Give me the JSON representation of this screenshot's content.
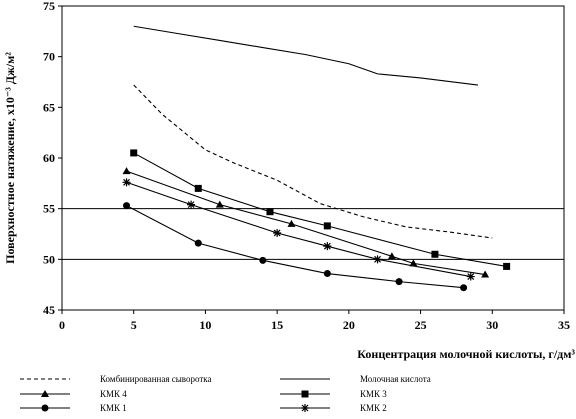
{
  "chart_data": {
    "type": "line",
    "xlabel": "Концентрация молочной кислоты, г/дм³",
    "ylabel": "Поверхностное натяжение, х10⁻³ Дж/м²",
    "xlim": [
      0,
      35
    ],
    "ylim": [
      45,
      75
    ],
    "x_ticks": [
      "0",
      "5",
      "10",
      "15",
      "20",
      "25",
      "30",
      "35"
    ],
    "y_ticks": [
      "45",
      "50",
      "55",
      "60",
      "65",
      "70",
      "75"
    ],
    "grid": "horizontal at 55 and 50",
    "legend_position": "bottom",
    "series": [
      {
        "name": "Комбинированная сыворотка",
        "style": "dashed",
        "marker": "none",
        "color": "#000000",
        "points": [
          [
            5,
            67.2
          ],
          [
            7,
            64.3
          ],
          [
            10,
            60.8
          ],
          [
            12,
            59.5
          ],
          [
            15,
            57.8
          ],
          [
            18,
            55.5
          ],
          [
            21,
            54.2
          ],
          [
            24,
            53.2
          ],
          [
            27,
            52.7
          ],
          [
            30,
            52.1
          ]
        ]
      },
      {
        "name": "Молочная кислота",
        "style": "solid",
        "marker": "none",
        "color": "#000000",
        "points": [
          [
            5,
            73.0
          ],
          [
            8,
            72.3
          ],
          [
            11,
            71.6
          ],
          [
            14,
            70.9
          ],
          [
            17,
            70.2
          ],
          [
            20,
            69.3
          ],
          [
            22,
            68.3
          ],
          [
            25,
            67.9
          ],
          [
            29,
            67.2
          ]
        ]
      },
      {
        "name": "КМК 4",
        "style": "solid",
        "marker": "triangle",
        "color": "#000000",
        "points": [
          [
            4.5,
            58.7
          ],
          [
            11,
            55.4
          ],
          [
            16,
            53.5
          ],
          [
            23,
            50.3
          ],
          [
            24.5,
            49.6
          ],
          [
            29.5,
            48.5
          ]
        ]
      },
      {
        "name": "КМК 3",
        "style": "solid",
        "marker": "square",
        "color": "#000000",
        "points": [
          [
            5,
            60.5
          ],
          [
            9.5,
            57.0
          ],
          [
            14.5,
            54.7
          ],
          [
            18.5,
            53.3
          ],
          [
            26,
            50.5
          ],
          [
            31,
            49.3
          ]
        ]
      },
      {
        "name": "КМК 1",
        "style": "solid",
        "marker": "circle",
        "color": "#000000",
        "points": [
          [
            4.5,
            55.3
          ],
          [
            9.5,
            51.6
          ],
          [
            14,
            49.9
          ],
          [
            18.5,
            48.6
          ],
          [
            23.5,
            47.8
          ],
          [
            28,
            47.2
          ]
        ]
      },
      {
        "name": "КМК 2",
        "style": "solid",
        "marker": "star",
        "color": "#000000",
        "points": [
          [
            4.5,
            57.6
          ],
          [
            9,
            55.4
          ],
          [
            15,
            52.6
          ],
          [
            18.5,
            51.3
          ],
          [
            22,
            50.0
          ],
          [
            28.5,
            48.3
          ]
        ]
      }
    ]
  }
}
